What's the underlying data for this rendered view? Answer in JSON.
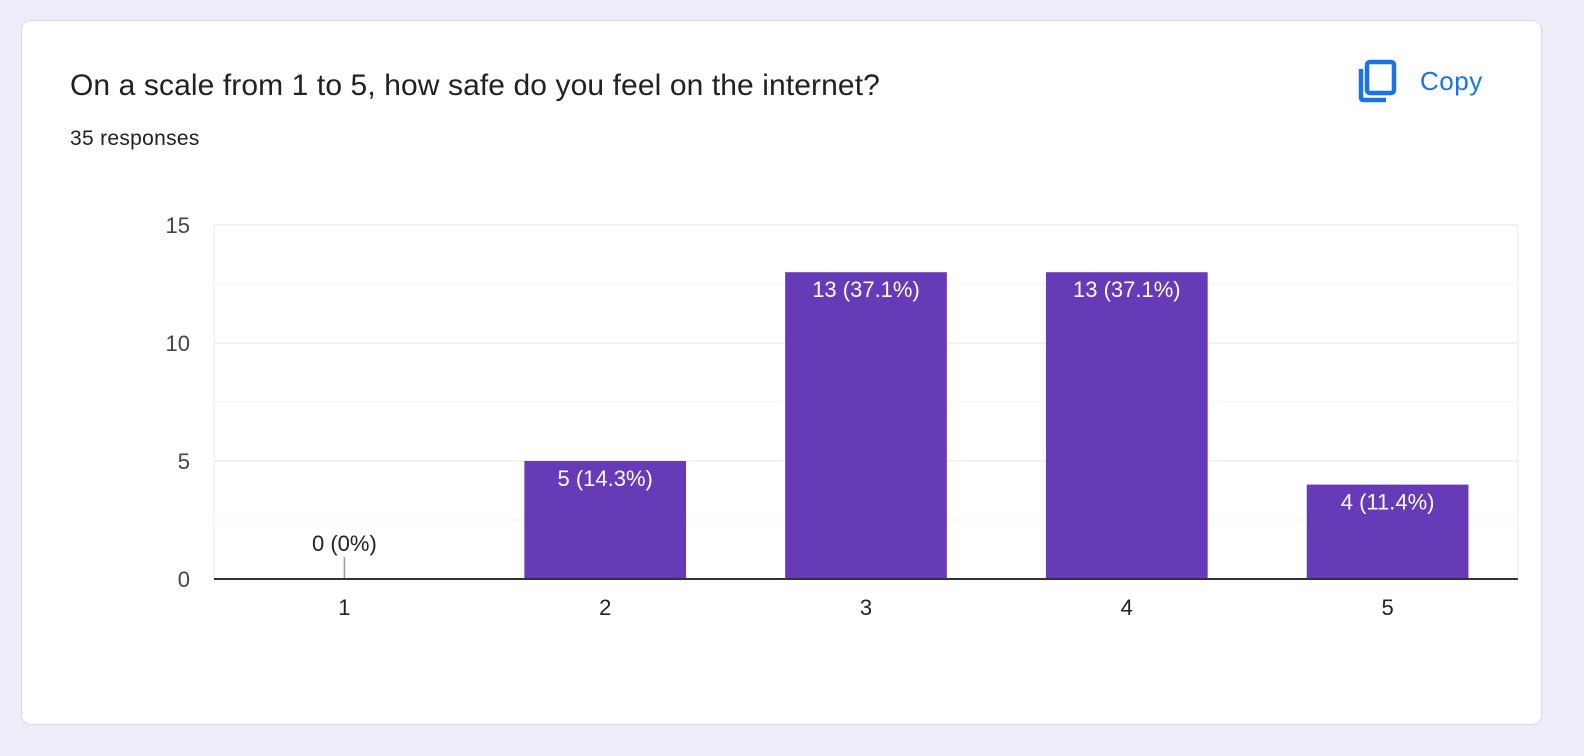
{
  "question": {
    "title": "On a scale from 1 to 5, how safe do you feel on the internet?",
    "responses": "35 responses"
  },
  "copy_button": {
    "label": "Copy",
    "icon": "copy-icon"
  },
  "colors": {
    "bar": "#673ab7",
    "accent": "#1a73e8",
    "background": "#efebf8"
  },
  "chart_data": {
    "type": "bar",
    "categories": [
      "1",
      "2",
      "3",
      "4",
      "5"
    ],
    "values": [
      0,
      5,
      13,
      13,
      4
    ],
    "data_labels": [
      "0 (0%)",
      "5 (14.3%)",
      "13 (37.1%)",
      "13 (37.1%)",
      "4 (11.4%)"
    ],
    "ylim": [
      0,
      15
    ],
    "yticks": [
      0,
      5,
      10,
      15
    ],
    "xlabel": "",
    "ylabel": "",
    "grid": true
  }
}
